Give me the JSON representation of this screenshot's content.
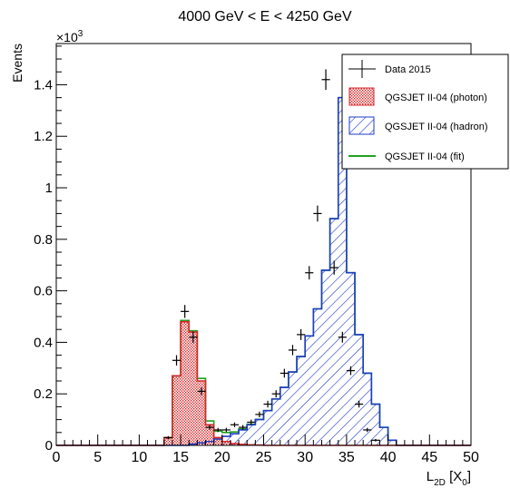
{
  "chart_data": {
    "type": "histogram",
    "title": "4000 GeV < E < 4250 GeV",
    "ylabel": "Events",
    "xlabel_main": "L",
    "xlabel_sub": "2D",
    "xlabel_unit_open": " [X",
    "xlabel_unit_sub": "0",
    "xlabel_unit_close": "]",
    "y_multiplier_prefix": "×10",
    "y_multiplier_exp": "3",
    "xlim": [
      0,
      50
    ],
    "ylim": [
      0,
      1.56
    ],
    "x_ticks": [
      0,
      5,
      10,
      15,
      20,
      25,
      30,
      35,
      40,
      45,
      50
    ],
    "y_ticks": [
      0,
      0.2,
      0.4,
      0.6,
      0.8,
      1,
      1.2,
      1.4
    ],
    "y_tick_labels": [
      "0",
      "0.2",
      "0.4",
      "0.6",
      "0.8",
      "1",
      "1.2",
      "1.4"
    ],
    "bin_edges": [
      0,
      1,
      2,
      3,
      4,
      5,
      6,
      7,
      8,
      9,
      10,
      11,
      12,
      13,
      14,
      15,
      16,
      17,
      18,
      19,
      20,
      21,
      22,
      23,
      24,
      25,
      26,
      27,
      28,
      29,
      30,
      31,
      32,
      33,
      34,
      35,
      36,
      37,
      38,
      39,
      40,
      41,
      42,
      43,
      44,
      45,
      46,
      47,
      48,
      49,
      50
    ],
    "legend": {
      "position": "top-right",
      "entries": [
        {
          "label": "Data 2015",
          "style": "marker"
        },
        {
          "label": "QGSJET II-04 (photon)",
          "style": "dots"
        },
        {
          "label": "QGSJET II-04 (hadron)",
          "style": "hatch"
        },
        {
          "label": "QGSJET II-04 (fit)",
          "style": "line"
        }
      ]
    },
    "colors": {
      "photon": "#d62728",
      "hadron": "#1f3cc4",
      "fit": "#22a022",
      "data": "#000000"
    },
    "series": [
      {
        "name": "QGSJET II-04 (photon)",
        "values": [
          0,
          0,
          0,
          0,
          0,
          0,
          0,
          0,
          0,
          0,
          0,
          0,
          0,
          0.03,
          0.27,
          0.48,
          0.44,
          0.25,
          0.08,
          0.03,
          0.015,
          0.007,
          0.004,
          0.002,
          0.001,
          0,
          0,
          0,
          0,
          0,
          0,
          0,
          0,
          0,
          0,
          0,
          0,
          0,
          0,
          0,
          0,
          0,
          0,
          0,
          0,
          0,
          0,
          0,
          0,
          0
        ]
      },
      {
        "name": "QGSJET II-04 (hadron)",
        "values": [
          0,
          0,
          0,
          0,
          0,
          0,
          0,
          0,
          0,
          0,
          0,
          0,
          0,
          0,
          0,
          0,
          0.005,
          0.01,
          0.015,
          0.025,
          0.035,
          0.045,
          0.06,
          0.08,
          0.1,
          0.135,
          0.18,
          0.225,
          0.285,
          0.345,
          0.425,
          0.53,
          0.68,
          0.88,
          1.35,
          0.67,
          0.43,
          0.28,
          0.16,
          0.07,
          0.02,
          0,
          0,
          0,
          0,
          0,
          0,
          0,
          0,
          0
        ]
      },
      {
        "name": "QGSJET II-04 (fit)",
        "values": [
          0,
          0,
          0,
          0,
          0,
          0,
          0,
          0,
          0,
          0,
          0,
          0,
          0,
          0.03,
          0.27,
          0.485,
          0.445,
          0.26,
          0.095,
          0.055,
          0.05,
          0.052,
          0.064,
          0.082,
          0.101,
          0.135,
          0.18,
          0.225,
          0.285,
          0.345,
          0.425,
          0.53,
          0.68,
          0.88,
          1.35,
          0.67,
          0.43,
          0.28,
          0.16,
          0.07,
          0.02,
          0,
          0,
          0,
          0,
          0,
          0,
          0,
          0,
          0
        ]
      }
    ],
    "data_points": {
      "name": "Data 2015",
      "x": [
        13.5,
        14.5,
        15.5,
        16.5,
        17.5,
        18.5,
        19.5,
        20.5,
        21.5,
        22.5,
        23.5,
        24.5,
        25.5,
        26.5,
        27.5,
        28.5,
        29.5,
        30.5,
        31.5,
        32.5,
        33.5,
        34.5,
        35.5,
        36.5,
        37.5,
        38.5
      ],
      "y": [
        0.03,
        0.33,
        0.52,
        0.42,
        0.21,
        0.07,
        0.06,
        0.06,
        0.08,
        0.07,
        0.09,
        0.12,
        0.16,
        0.2,
        0.28,
        0.37,
        0.43,
        0.67,
        0.9,
        1.42,
        0.69,
        0.42,
        0.29,
        0.16,
        0.06,
        0.02
      ],
      "yerr": [
        0.006,
        0.02,
        0.025,
        0.022,
        0.015,
        0.009,
        0.008,
        0.008,
        0.009,
        0.009,
        0.01,
        0.011,
        0.013,
        0.014,
        0.017,
        0.02,
        0.021,
        0.026,
        0.031,
        0.04,
        0.027,
        0.021,
        0.017,
        0.013,
        0.008,
        0.005
      ]
    }
  }
}
